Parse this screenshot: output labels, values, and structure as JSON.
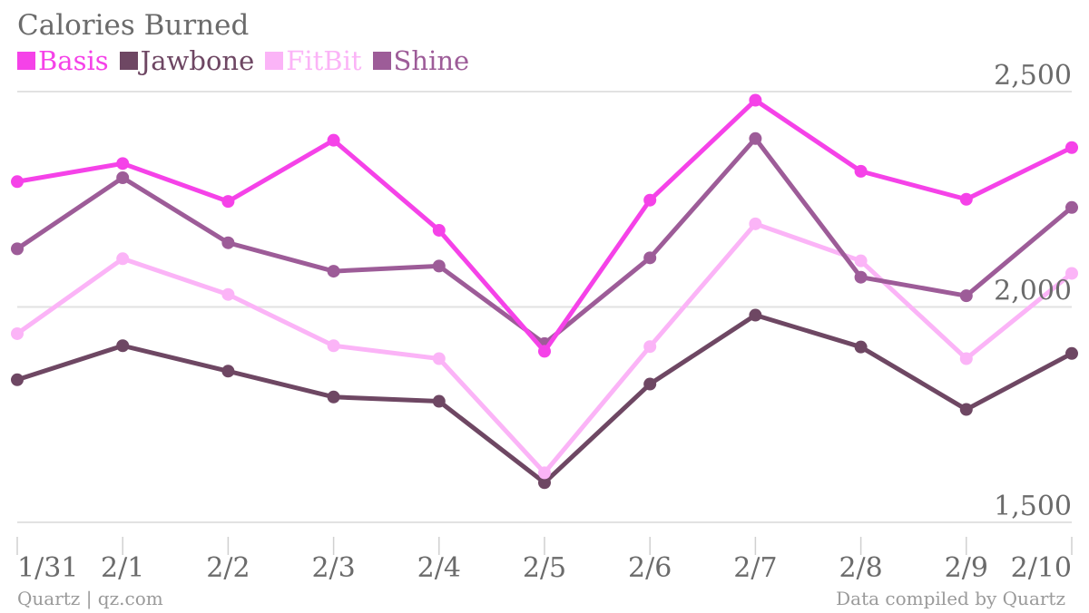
{
  "title": "Calories Burned",
  "footer": {
    "source": "Quartz | qz.com",
    "credit": "Data compiled by Quartz"
  },
  "chart_data": {
    "type": "line",
    "title": "Calories Burned",
    "categories": [
      "1/31",
      "2/1",
      "2/2",
      "2/3",
      "2/4",
      "2/5",
      "2/6",
      "2/7",
      "2/8",
      "2/9",
      "2/10"
    ],
    "ylim": [
      1500,
      2500
    ],
    "yticks": [
      {
        "value": 1500,
        "label": "1,500"
      },
      {
        "value": 2000,
        "label": "2,000"
      },
      {
        "value": 2500,
        "label": "2,500"
      }
    ],
    "grid": true,
    "legend_position": "top-left",
    "series": [
      {
        "name": "Basis",
        "color": "#f542e8",
        "values": [
          2291,
          2333,
          2245,
          2387,
          2178,
          1897,
          2248,
          2480,
          2315,
          2250,
          2370
        ]
      },
      {
        "name": "Jawbone",
        "color": "#6e4763",
        "values": [
          1831,
          1910,
          1851,
          1791,
          1781,
          1592,
          1821,
          1981,
          1907,
          1762,
          1892
        ]
      },
      {
        "name": "FitBit",
        "color": "#fbb4f7",
        "values": [
          1938,
          2112,
          2029,
          1910,
          1880,
          1615,
          1908,
          2193,
          2107,
          1880,
          2078
        ]
      },
      {
        "name": "Shine",
        "color": "#9d5c98",
        "values": [
          2135,
          2300,
          2149,
          2083,
          2095,
          1915,
          2114,
          2391,
          2069,
          2026,
          2231
        ]
      }
    ]
  }
}
